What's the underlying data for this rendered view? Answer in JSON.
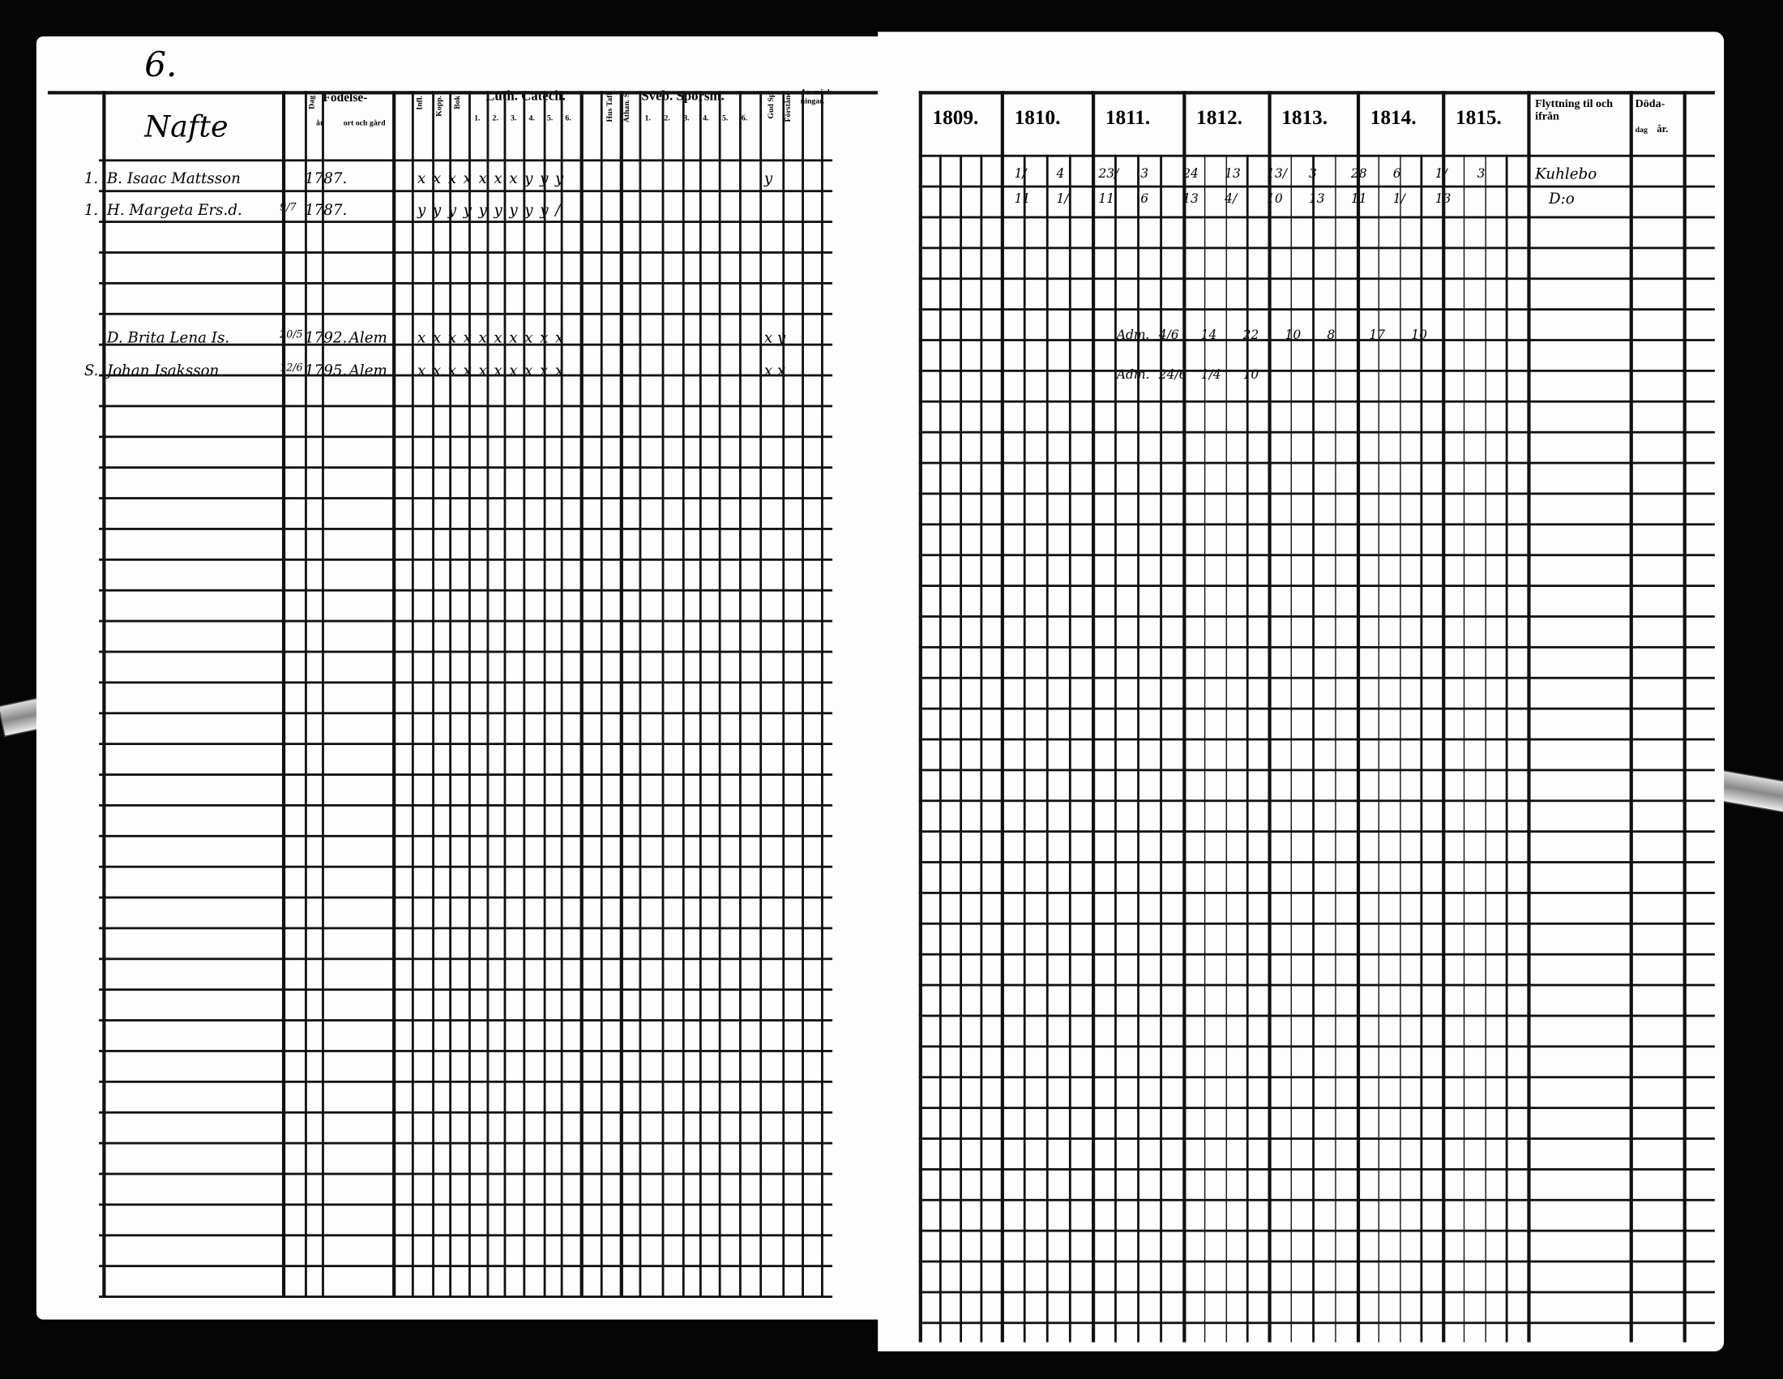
{
  "left_page": {
    "page_number": "6.",
    "name_header": "Nafte",
    "header": {
      "fodelse": "Födelse-",
      "fodelse_sub": [
        "år",
        "ort och gård"
      ],
      "vertical_labels": [
        "Dag",
        "Infl.",
        "Kopp.",
        "Bok"
      ],
      "luth_catech": "Luth. Catech.",
      "luth_sub": [
        "1.",
        "2.",
        "3.",
        "4.",
        "5.",
        "6."
      ],
      "hustafl": "Hus Tafl.",
      "athan": "Athan. S.",
      "sveb_sporsm": "Sveb. Spörsm.",
      "sveb_sub": [
        "1.",
        "2.",
        "3.",
        "4.",
        "5.",
        "6."
      ],
      "gud_sp": "Gud Sp.",
      "forstand": "Förstånd",
      "anmarkningar": "An-märk-ningar."
    },
    "rows": [
      {
        "num": "1.",
        "name": "B. Isaac Mattsson",
        "year": "1787.",
        "marks": "x x x x x x x y y y",
        "extra": "y"
      },
      {
        "num": "1.",
        "name": "H. Margeta Ers.d.",
        "day": "9/7",
        "year": "1787.",
        "marks": "y y y y y y y y y /"
      },
      {
        "num": "",
        "name": "D. Brita Lena Is.",
        "day": "20/5",
        "year": "1792.",
        "place": "Alem",
        "marks": "x x x x x x x x x x",
        "extra": "x y"
      },
      {
        "num": "S.",
        "name": "Johan Isaksson",
        "day": "12/6",
        "year": "1795.",
        "place": "Alem",
        "marks": "x x x x x x x x x x",
        "extra": "x x"
      }
    ]
  },
  "right_page": {
    "years": [
      "1809.",
      "1810.",
      "1811.",
      "1812.",
      "1813.",
      "1814.",
      "1815."
    ],
    "flyttning": "Flyttning til och ifrån",
    "doda": "Döda-",
    "doda_sub": [
      "år.",
      "dag"
    ],
    "entries": [
      {
        "row": 1,
        "values": [
          "1/",
          "4",
          "23/",
          "3",
          "24",
          "13",
          "13/",
          "3",
          "28",
          "6",
          "1/",
          "3"
        ],
        "note": "Kuhlebo"
      },
      {
        "row": 2,
        "values": [
          "11",
          "1/",
          "11",
          "6",
          "13",
          "4/",
          "10",
          "13",
          "11",
          "1/",
          "13"
        ],
        "note": "D:o"
      },
      {
        "row": 3,
        "values": [
          "Adm.",
          "4/6",
          "14",
          "22",
          "10",
          "8",
          "17",
          "10"
        ]
      },
      {
        "row": 4,
        "values": [
          "Adm.",
          "24/6",
          "1/4",
          "10"
        ]
      }
    ]
  }
}
